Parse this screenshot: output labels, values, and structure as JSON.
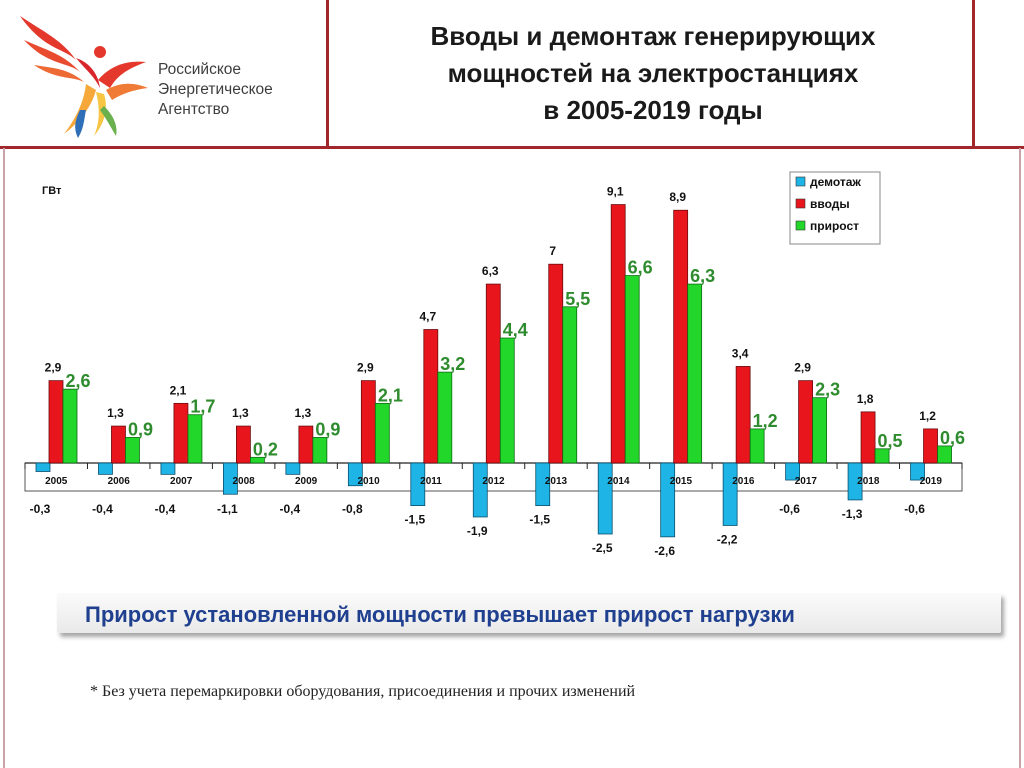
{
  "logo": {
    "lines": [
      "Российское",
      "Энергетическое",
      "Агентство"
    ],
    "icon": "phoenix-bird-logo"
  },
  "title": {
    "lines": [
      "Вводы и демонтаж генерирующих",
      "мощностей на электростанциях",
      "в 2005-2019 годы"
    ]
  },
  "banner": {
    "text": "Прирост установленной мощности превышает прирост нагрузки"
  },
  "footnote": {
    "text": "* Без учета перемаркировки оборудования, присоединения и прочих изменений"
  },
  "chart_data": {
    "type": "bar",
    "ylabel": "ГВт",
    "categories": [
      "2005",
      "2006",
      "2007",
      "2008",
      "2009",
      "2010",
      "2011",
      "2012",
      "2013",
      "2014",
      "2015",
      "2016",
      "2017",
      "2018",
      "2019"
    ],
    "series": [
      {
        "name": "демотаж",
        "color": "#1fb4e6",
        "values": [
          -0.3,
          -0.4,
          -0.4,
          -1.1,
          -0.4,
          -0.8,
          -1.5,
          -1.9,
          -1.5,
          -2.5,
          -2.6,
          -2.2,
          -0.6,
          -1.3,
          -0.6
        ],
        "labels": [
          "-0,3",
          "-0,4",
          "-0,4",
          "-1,1",
          "-0,4",
          "-0,8",
          "-1,5",
          "-1,9",
          "-1,5",
          "-2,5",
          "-2,6",
          "-2,2",
          "-0,6",
          "-1,3",
          "-0,6"
        ]
      },
      {
        "name": "вводы",
        "color": "#e8161c",
        "values": [
          2.9,
          1.3,
          2.1,
          1.3,
          1.3,
          2.9,
          4.7,
          6.3,
          7,
          9.1,
          8.9,
          3.4,
          2.9,
          1.8,
          1.2
        ],
        "labels": [
          "2,9",
          "1,3",
          "2,1",
          "1,3",
          "1,3",
          "2,9",
          "4,7",
          "6,3",
          "7",
          "9,1",
          "8,9",
          "3,4",
          "2,9",
          "1,8",
          "1,2"
        ]
      },
      {
        "name": "прирост",
        "color": "#22d62a",
        "values": [
          2.6,
          0.9,
          1.7,
          0.2,
          0.9,
          2.1,
          3.2,
          4.4,
          5.5,
          6.6,
          6.3,
          1.2,
          2.3,
          0.5,
          0.6
        ],
        "labels": [
          "2,6",
          "0,9",
          "1,7",
          "0,2",
          "0,9",
          "2,1",
          "3,2",
          "4,4",
          "5,5",
          "6,6",
          "6,3",
          "1,2",
          "2,3",
          "0,5",
          "0,6"
        ]
      }
    ],
    "legend_position": "top-right",
    "grid": false,
    "label_color_growth": "#2e8b2e"
  }
}
